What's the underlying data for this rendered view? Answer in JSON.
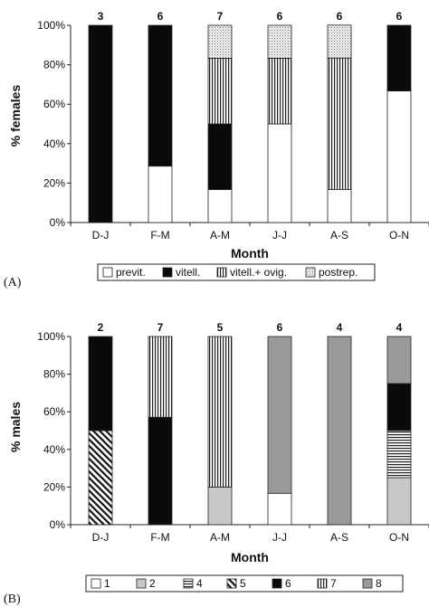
{
  "chart_data": [
    {
      "type": "bar",
      "stacked": true,
      "panel_label": "(A)",
      "xlabel": "Month",
      "ylabel": "% females",
      "ylim": [
        0,
        100
      ],
      "yticks": [
        "0%",
        "20%",
        "40%",
        "60%",
        "80%",
        "100%"
      ],
      "categories": [
        "D-J",
        "F-M",
        "A-M",
        "J-J",
        "A-S",
        "O-N"
      ],
      "counts": [
        "3",
        "6",
        "7",
        "6",
        "6",
        "6"
      ],
      "series": [
        {
          "name": "previt.",
          "pattern": "white",
          "values": [
            0,
            28.6,
            16.7,
            50,
            16.7,
            66.7
          ]
        },
        {
          "name": "vitell.",
          "pattern": "black",
          "values": [
            100,
            71.4,
            33.3,
            0,
            0,
            33.3
          ]
        },
        {
          "name": "vitell.+ ovig.",
          "pattern": "vlines",
          "values": [
            0,
            0,
            33.3,
            33.3,
            66.7,
            0
          ]
        },
        {
          "name": "postrep.",
          "pattern": "dots",
          "values": [
            0,
            0,
            16.7,
            16.7,
            16.7,
            0
          ]
        }
      ],
      "legend_position": "bottom"
    },
    {
      "type": "bar",
      "stacked": true,
      "panel_label": "(B)",
      "xlabel": "Month",
      "ylabel": "% males",
      "ylim": [
        0,
        100
      ],
      "yticks": [
        "0%",
        "20%",
        "40%",
        "60%",
        "80%",
        "100%"
      ],
      "categories": [
        "D-J",
        "F-M",
        "A-M",
        "J-J",
        "A-S",
        "O-N"
      ],
      "counts": [
        "2",
        "7",
        "5",
        "6",
        "4",
        "4"
      ],
      "series": [
        {
          "name": "1",
          "pattern": "white",
          "values": [
            0,
            0,
            0,
            16.7,
            0,
            0
          ]
        },
        {
          "name": "2",
          "pattern": "lightgray",
          "values": [
            0,
            0,
            20,
            0,
            0,
            25
          ]
        },
        {
          "name": "4",
          "pattern": "hlines",
          "values": [
            0,
            0,
            0,
            0,
            0,
            25
          ]
        },
        {
          "name": "5",
          "pattern": "diag",
          "values": [
            50,
            0,
            0,
            0,
            0,
            0
          ]
        },
        {
          "name": "6",
          "pattern": "black",
          "values": [
            50,
            57.1,
            0,
            0,
            0,
            25
          ]
        },
        {
          "name": "7",
          "pattern": "vlines",
          "values": [
            0,
            42.9,
            80,
            0,
            0,
            0
          ]
        },
        {
          "name": "8",
          "pattern": "gray",
          "values": [
            0,
            0,
            0,
            83.3,
            100,
            25
          ]
        }
      ],
      "legend_position": "bottom"
    }
  ]
}
